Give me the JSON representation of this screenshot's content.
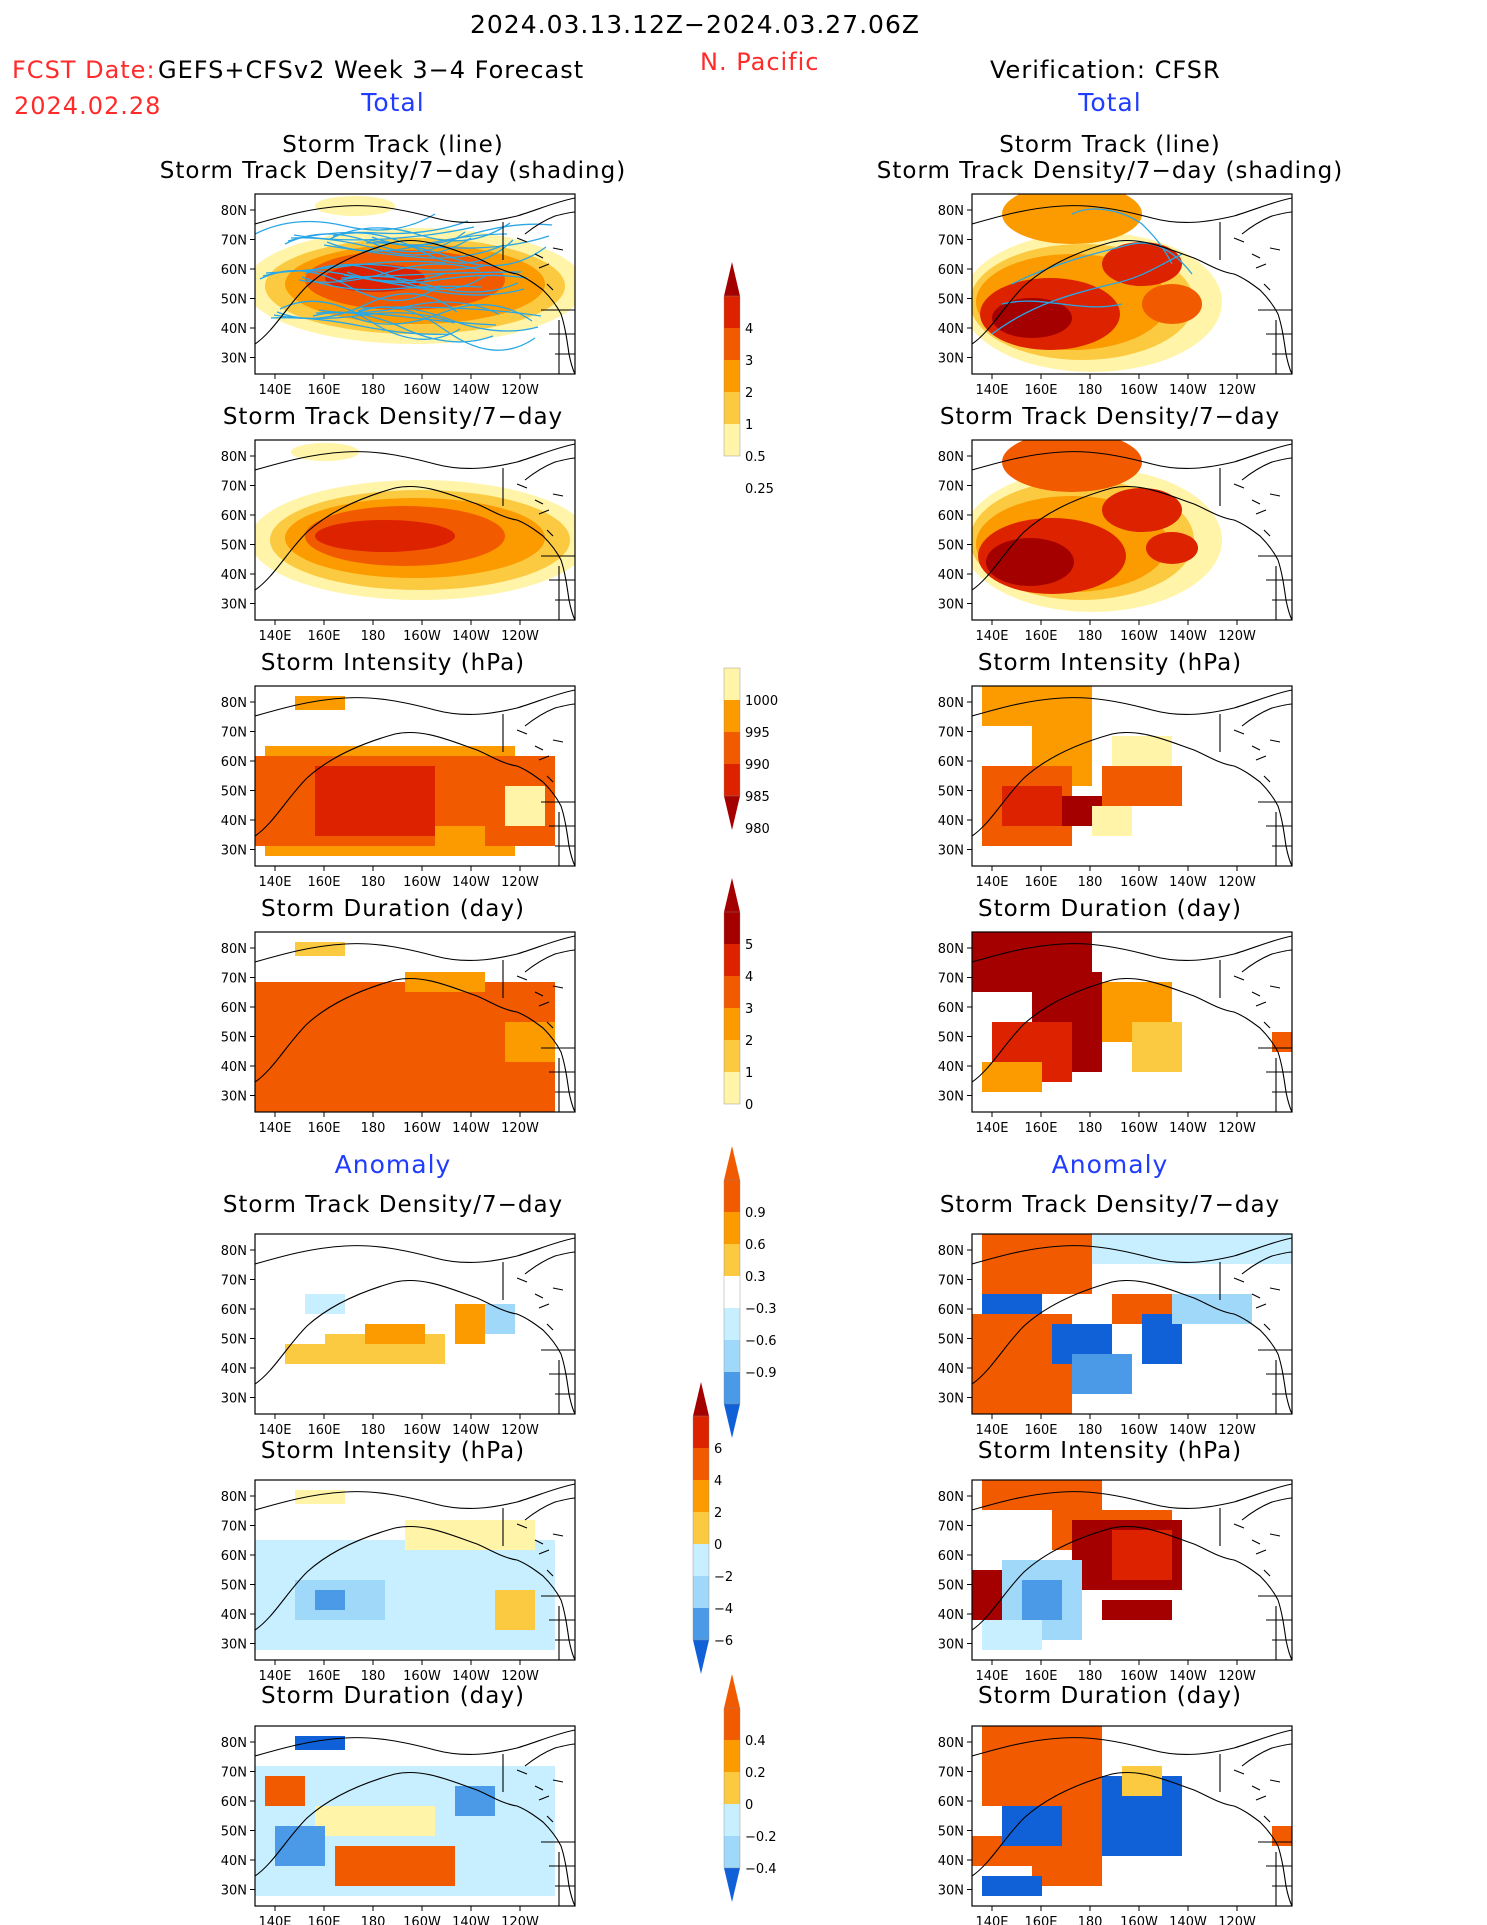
{
  "header": {
    "title": "2024.03.13.12Z−2024.03.27.06Z",
    "fcst_date_label": "FCST Date:",
    "fcst_date_value": "2024.02.28",
    "forecast_title": "GEFS+CFSv2 Week 3−4 Forecast",
    "region": "N. Pacific",
    "verification": "Verification: CFSR"
  },
  "sections": {
    "total": "Total",
    "anomaly": "Anomaly"
  },
  "panels": {
    "storm_track_line": "Storm Track (line)",
    "storm_track_density_shading": "Storm Track Density/7−day (shading)",
    "storm_track_density": "Storm Track Density/7−day",
    "storm_intensity": "Storm Intensity (hPa)",
    "storm_duration": "Storm Duration (day)"
  },
  "axes": {
    "lat": [
      "80N",
      "70N",
      "60N",
      "50N",
      "40N",
      "30N"
    ],
    "lon": [
      "140E",
      "160E",
      "180",
      "160W",
      "140W",
      "120W"
    ]
  },
  "colorbars": {
    "density_total": [
      "4",
      "3",
      "2",
      "1",
      "0.5",
      "0.25"
    ],
    "intensity_total": [
      "1000",
      "995",
      "990",
      "985",
      "980"
    ],
    "duration_total": [
      "5",
      "4",
      "3",
      "2",
      "1",
      "0"
    ],
    "density_anom": [
      "0.9",
      "0.6",
      "0.3",
      "−0.3",
      "−0.6",
      "−0.9"
    ],
    "intensity_anom": [
      "6",
      "4",
      "2",
      "0",
      "−2",
      "−4",
      "−6"
    ],
    "duration_anom": [
      "0.4",
      "0.2",
      "0",
      "−0.2",
      "−0.4"
    ]
  },
  "colors": {
    "title_red": "#ff2a2a",
    "subtitle_blue": "#1f3cff",
    "dark_red": "#a50000",
    "red": "#dd2200",
    "orange_red": "#f25a00",
    "orange": "#fb9b00",
    "light_orange": "#fcca40",
    "yellow": "#fff4a8",
    "pale_blue": "#c8efff",
    "light_blue": "#9fd8f8",
    "mid_blue": "#4a9ae8",
    "dark_blue": "#1060d8",
    "track_line": "#29a6e6"
  }
}
